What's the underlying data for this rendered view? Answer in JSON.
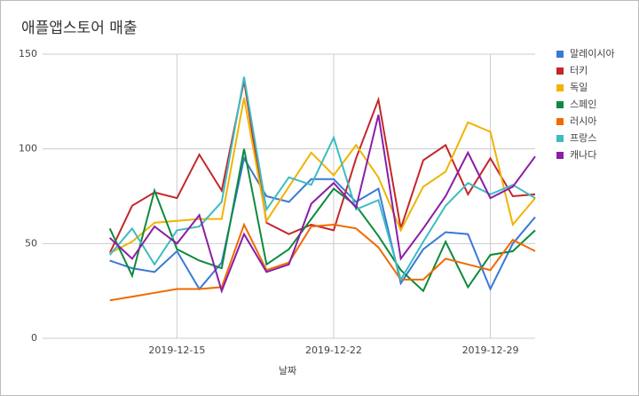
{
  "chart_data": {
    "type": "line",
    "title": "애플앱스토어 매출",
    "xlabel": "날짜",
    "x": [
      "2019-12-12",
      "2019-12-13",
      "2019-12-14",
      "2019-12-15",
      "2019-12-16",
      "2019-12-17",
      "2019-12-18",
      "2019-12-19",
      "2019-12-20",
      "2019-12-21",
      "2019-12-22",
      "2019-12-23",
      "2019-12-24",
      "2019-12-25",
      "2019-12-26",
      "2019-12-27",
      "2019-12-28",
      "2019-12-29",
      "2019-12-30",
      "2019-12-31"
    ],
    "xlim": [
      "2019-12-09",
      "2019-12-31"
    ],
    "xticks": [
      "2019-12-15",
      "2019-12-22",
      "2019-12-29"
    ],
    "ylim": [
      0,
      150
    ],
    "yticks": [
      0,
      50,
      100,
      150
    ],
    "grid": true,
    "legend": "right",
    "series": [
      {
        "name": "말레이시아",
        "color": "#3a78d6",
        "values": [
          41,
          37,
          35,
          46,
          26,
          40,
          95,
          75,
          72,
          84,
          84,
          72,
          79,
          29,
          47,
          56,
          55,
          26,
          50,
          64
        ]
      },
      {
        "name": "터키",
        "color": "#c3272b",
        "values": [
          45,
          70,
          77,
          74,
          97,
          78,
          136,
          61,
          55,
          60,
          57,
          95,
          126,
          58,
          94,
          102,
          76,
          95,
          75,
          76
        ]
      },
      {
        "name": "독일",
        "color": "#f0b400",
        "values": [
          45,
          51,
          61,
          62,
          63,
          63,
          127,
          62,
          80,
          98,
          86,
          102,
          85,
          57,
          80,
          88,
          114,
          109,
          60,
          74
        ]
      },
      {
        "name": "스페인",
        "color": "#0e8a3e",
        "values": [
          58,
          33,
          78,
          47,
          41,
          37,
          100,
          39,
          47,
          63,
          79,
          70,
          54,
          36,
          25,
          51,
          27,
          44,
          46,
          57
        ]
      },
      {
        "name": "러시아",
        "color": "#f06a00",
        "values": [
          20,
          22,
          24,
          26,
          26,
          27,
          60,
          36,
          40,
          59,
          60,
          58,
          48,
          31,
          31,
          42,
          39,
          36,
          52,
          46
        ]
      },
      {
        "name": "프랑스",
        "color": "#3cbcc3",
        "values": [
          44,
          58,
          39,
          57,
          59,
          72,
          138,
          68,
          85,
          81,
          106,
          68,
          73,
          31,
          51,
          70,
          82,
          76,
          81,
          74
        ]
      },
      {
        "name": "캐나다",
        "color": "#8a1ea8",
        "values": [
          53,
          42,
          59,
          50,
          65,
          25,
          55,
          35,
          39,
          71,
          82,
          69,
          118,
          42,
          58,
          75,
          98,
          74,
          80,
          96
        ]
      }
    ]
  }
}
